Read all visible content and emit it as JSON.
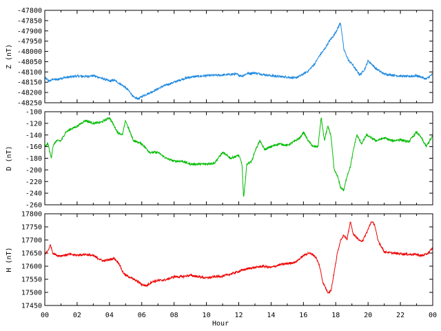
{
  "chart_data": {
    "type": "line",
    "xlabel": "Hour",
    "xlim": [
      0,
      24
    ],
    "x_ticks": [
      "00",
      "02",
      "04",
      "06",
      "08",
      "10",
      "12",
      "14",
      "16",
      "18",
      "20",
      "22",
      "00"
    ],
    "panels": [
      {
        "name": "Z",
        "ylabel": "Z (nT)",
        "color": "#1a87e0",
        "ylim": [
          -48250,
          -47800
        ],
        "y_ticks": [
          "-47800",
          "-47850",
          "-47900",
          "-47950",
          "-48000",
          "-48050",
          "-48100",
          "-48150",
          "-48200",
          "-48250"
        ],
        "x": [
          0,
          0.3,
          0.5,
          0.8,
          1.0,
          1.5,
          2.0,
          2.5,
          3.0,
          3.3,
          3.7,
          4.0,
          4.3,
          4.6,
          4.9,
          5.1,
          5.3,
          5.5,
          5.8,
          6.1,
          6.4,
          6.8,
          7.3,
          8.0,
          8.5,
          9.0,
          10.0,
          11.0,
          11.8,
          12.2,
          12.5,
          13.0,
          13.5,
          14.0,
          14.5,
          15.0,
          15.5,
          15.9,
          16.3,
          16.7,
          17.0,
          17.3,
          17.6,
          17.9,
          18.1,
          18.3,
          18.5,
          18.8,
          19.0,
          19.3,
          19.5,
          19.8,
          20.0,
          20.2,
          20.5,
          21.0,
          21.5,
          22.0,
          22.5,
          23.0,
          23.3,
          23.6,
          24.0
        ],
        "values": [
          -48130,
          -48145,
          -48135,
          -48138,
          -48130,
          -48125,
          -48120,
          -48122,
          -48118,
          -48125,
          -48135,
          -48145,
          -48140,
          -48155,
          -48170,
          -48185,
          -48200,
          -48225,
          -48230,
          -48215,
          -48205,
          -48190,
          -48170,
          -48150,
          -48135,
          -48125,
          -48118,
          -48115,
          -48110,
          -48120,
          -48108,
          -48105,
          -48112,
          -48118,
          -48122,
          -48125,
          -48130,
          -48115,
          -48095,
          -48060,
          -48020,
          -47990,
          -47950,
          -47920,
          -47890,
          -47860,
          -47990,
          -48045,
          -48060,
          -48095,
          -48115,
          -48085,
          -48045,
          -48060,
          -48085,
          -48110,
          -48115,
          -48120,
          -48122,
          -48118,
          -48125,
          -48135,
          -48110
        ]
      },
      {
        "name": "D",
        "ylabel": "D (nT)",
        "color": "#00bb00",
        "ylim": [
          -260,
          -100
        ],
        "y_ticks": [
          "-100",
          "-120",
          "-140",
          "-160",
          "-180",
          "-200",
          "-220",
          "-240",
          "-260"
        ],
        "x": [
          0,
          0.2,
          0.4,
          0.5,
          0.7,
          1.0,
          1.3,
          1.6,
          2.0,
          2.5,
          3.0,
          3.5,
          4.0,
          4.5,
          4.8,
          5.0,
          5.2,
          5.5,
          6.0,
          6.5,
          7.0,
          7.5,
          8.0,
          8.5,
          9.0,
          9.5,
          10.0,
          10.5,
          11.0,
          11.5,
          12.0,
          12.2,
          12.3,
          12.5,
          12.8,
          13.0,
          13.3,
          13.6,
          14.0,
          14.5,
          15.0,
          15.5,
          15.8,
          16.0,
          16.3,
          16.6,
          16.9,
          17.1,
          17.3,
          17.5,
          17.7,
          17.9,
          18.1,
          18.3,
          18.5,
          18.7,
          18.9,
          19.1,
          19.3,
          19.6,
          19.9,
          20.2,
          20.5,
          21.0,
          21.5,
          22.0,
          22.5,
          23.0,
          23.3,
          23.6,
          23.8,
          24.0
        ],
        "values": [
          -160,
          -155,
          -180,
          -160,
          -150,
          -150,
          -135,
          -130,
          -125,
          -115,
          -120,
          -118,
          -110,
          -135,
          -140,
          -115,
          -130,
          -150,
          -155,
          -170,
          -170,
          -180,
          -185,
          -185,
          -190,
          -190,
          -190,
          -188,
          -170,
          -180,
          -175,
          -190,
          -250,
          -190,
          -185,
          -168,
          -150,
          -165,
          -160,
          -155,
          -158,
          -150,
          -145,
          -135,
          -150,
          -160,
          -160,
          -110,
          -150,
          -125,
          -140,
          -200,
          -210,
          -230,
          -235,
          -210,
          -195,
          -165,
          -140,
          -155,
          -140,
          -145,
          -150,
          -145,
          -150,
          -148,
          -152,
          -135,
          -145,
          -160,
          -150,
          -142
        ]
      },
      {
        "name": "H",
        "ylabel": "H (nT)",
        "color": "#ee0000",
        "ylim": [
          17450,
          17800
        ],
        "y_ticks": [
          "17800",
          "17750",
          "17700",
          "17650",
          "17600",
          "17550",
          "17500",
          "17450"
        ],
        "x": [
          0,
          0.2,
          0.35,
          0.5,
          0.8,
          1.0,
          1.5,
          2.0,
          2.5,
          3.0,
          3.3,
          3.6,
          4.0,
          4.3,
          4.6,
          4.8,
          5.0,
          5.2,
          5.5,
          5.8,
          6.0,
          6.3,
          6.6,
          7.0,
          7.5,
          8.0,
          8.5,
          9.0,
          9.5,
          10.0,
          10.5,
          11.0,
          11.5,
          12.0,
          12.5,
          13.0,
          13.5,
          14.0,
          14.5,
          15.0,
          15.5,
          16.0,
          16.3,
          16.6,
          16.8,
          17.0,
          17.2,
          17.5,
          17.7,
          17.9,
          18.1,
          18.3,
          18.5,
          18.7,
          18.9,
          19.1,
          19.3,
          19.5,
          19.7,
          20.0,
          20.2,
          20.4,
          20.6,
          21.0,
          21.5,
          22.0,
          22.5,
          23.0,
          23.3,
          23.6,
          23.8,
          24.0
        ],
        "values": [
          17645,
          17660,
          17682,
          17650,
          17640,
          17640,
          17645,
          17642,
          17645,
          17640,
          17630,
          17620,
          17625,
          17630,
          17610,
          17580,
          17565,
          17560,
          17550,
          17540,
          17530,
          17525,
          17540,
          17545,
          17548,
          17560,
          17560,
          17565,
          17560,
          17555,
          17560,
          17562,
          17570,
          17580,
          17590,
          17595,
          17600,
          17595,
          17605,
          17610,
          17615,
          17640,
          17650,
          17645,
          17630,
          17600,
          17540,
          17500,
          17505,
          17575,
          17650,
          17700,
          17720,
          17700,
          17770,
          17720,
          17710,
          17695,
          17700,
          17740,
          17770,
          17760,
          17700,
          17655,
          17650,
          17648,
          17645,
          17645,
          17640,
          17645,
          17655,
          17670
        ]
      }
    ]
  }
}
